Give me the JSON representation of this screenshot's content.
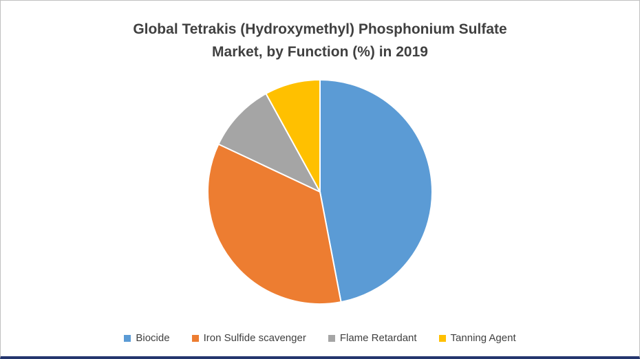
{
  "chart": {
    "title_line1": "Global Tetrakis (Hydroxymethyl) Phosphonium Sulfate",
    "title_line2": "Market, by Function (%) in 2019"
  },
  "chart_data": {
    "type": "pie",
    "title": "Global Tetrakis (Hydroxymethyl) Phosphonium Sulfate Market, by Function (%) in 2019",
    "categories": [
      "Biocide",
      "Iron Sulfide scavenger",
      "Flame Retardant",
      "Tanning Agent"
    ],
    "values": [
      47,
      35,
      10,
      8
    ],
    "colors": [
      "#5b9bd5",
      "#ed7d31",
      "#a5a5a5",
      "#ffc000"
    ],
    "unit": "%",
    "start_angle_deg": 0,
    "direction": "clockwise",
    "legend_position": "bottom",
    "slice_border_color": "#ffffff",
    "title_color": "#404040",
    "frame_bottom_border_color": "#24366e"
  }
}
